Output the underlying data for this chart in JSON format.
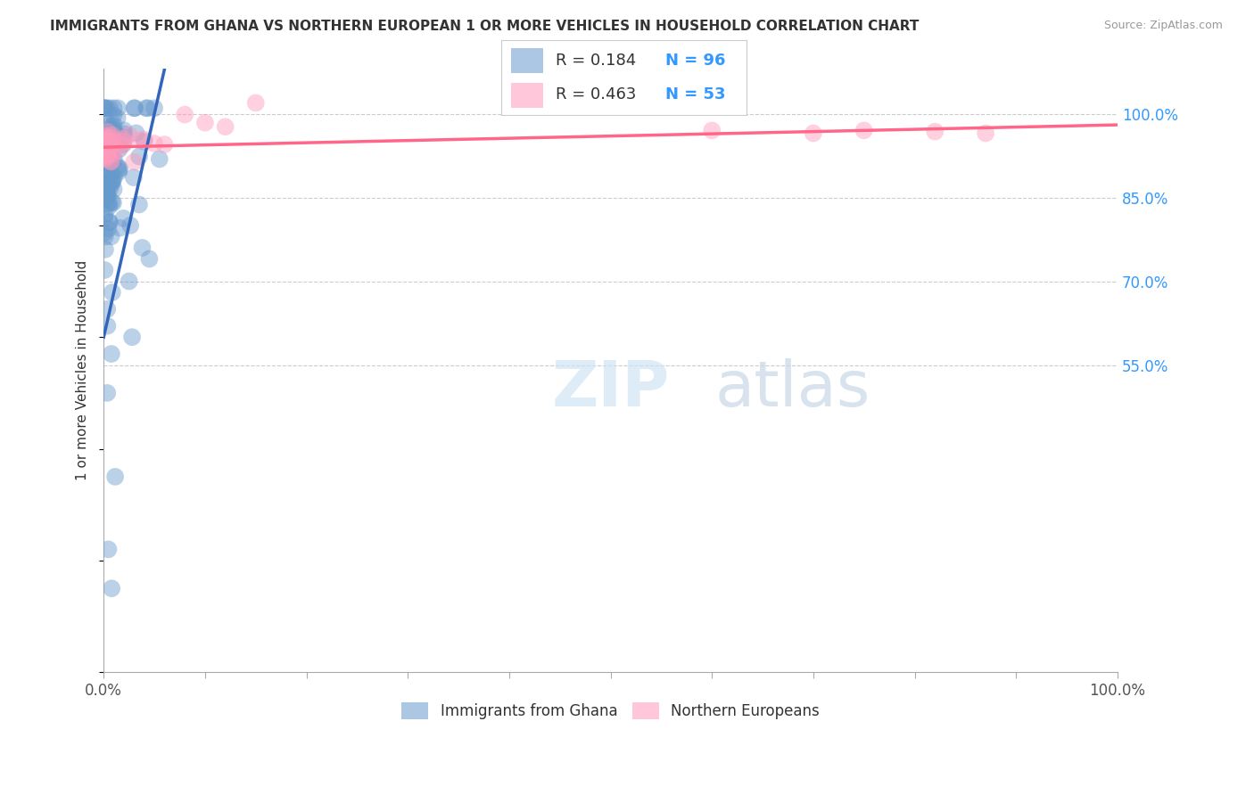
{
  "title": "IMMIGRANTS FROM GHANA VS NORTHERN EUROPEAN 1 OR MORE VEHICLES IN HOUSEHOLD CORRELATION CHART",
  "source": "Source: ZipAtlas.com",
  "ylabel": "1 or more Vehicles in Household",
  "ytick_values": [
    0.55,
    0.7,
    0.85,
    1.0
  ],
  "ytick_labels": [
    "55.0%",
    "70.0%",
    "85.0%",
    "100.0%"
  ],
  "legend_r1": "R = 0.184",
  "legend_n1": "N = 96",
  "legend_r2": "R = 0.463",
  "legend_n2": "N = 53",
  "color_ghana": "#6699CC",
  "color_northern": "#FF99BB",
  "color_line_ghana": "#3366BB",
  "color_line_northern": "#FF6688",
  "color_axis_blue": "#3399FF",
  "color_text_dark": "#333333",
  "color_source": "#999999",
  "color_grid": "#CCCCCC"
}
